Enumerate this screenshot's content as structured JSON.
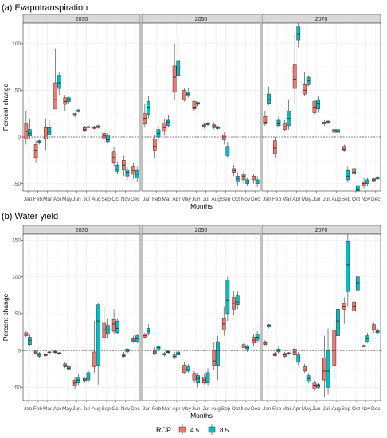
{
  "colors": {
    "rcp45": "#F8766D",
    "rcp85": "#00BFC4",
    "strip_bg": "#d9d9d9",
    "grid": "#ebebeb",
    "border": "#333333"
  },
  "legend": {
    "title": "RCP",
    "items": [
      {
        "label": "4.5",
        "color": "#F8766D"
      },
      {
        "label": "8.5",
        "color": "#00BFC4"
      }
    ]
  },
  "chart_data": [
    {
      "type": "box",
      "title": "(a) Evapotranspiration",
      "xlabel": "Months",
      "ylabel": "Percent change",
      "ylim": [
        -58,
        122
      ],
      "yticks": [
        -50,
        0,
        50,
        100
      ],
      "reference_line": 0,
      "categories": [
        "Jan",
        "Feb",
        "Mar",
        "Apr",
        "May",
        "Jun",
        "Jul",
        "Aug",
        "Sep",
        "Oct",
        "Nov",
        "Dec"
      ],
      "facets": [
        {
          "label": "2030",
          "rcp45": [
            [
              -8,
              -2,
              6,
              14,
              28
            ],
            [
              -28,
              -22,
              -14,
              -8,
              -4
            ],
            [
              -14,
              -2,
              2,
              10,
              20
            ],
            [
              36,
              30,
              40,
              58,
              95
            ],
            [
              28,
              35,
              38,
              42,
              45
            ],
            [
              21,
              23,
              24,
              25,
              26
            ],
            [
              5,
              7,
              8,
              10,
              12
            ],
            [
              8,
              9,
              10,
              11,
              12
            ],
            [
              -6,
              -2,
              1,
              4,
              8
            ],
            [
              -32,
              -28,
              -22,
              -16,
              -10
            ],
            [
              -42,
              -35,
              -30,
              -25,
              -20
            ],
            [
              -45,
              -40,
              -36,
              -32,
              -28
            ]
          ],
          "rcp85": [
            [
              -2,
              1,
              4,
              8,
              20
            ],
            [
              -8,
              -6,
              -5,
              -4,
              -3
            ],
            [
              -2,
              2,
              6,
              10,
              18
            ],
            [
              45,
              52,
              58,
              66,
              70
            ],
            [
              36,
              38,
              40,
              42,
              43
            ],
            [
              26,
              27,
              28,
              29,
              30
            ],
            [
              9,
              10,
              11,
              11,
              12
            ],
            [
              9,
              10,
              11,
              12,
              13
            ],
            [
              -6,
              -5,
              -3,
              2,
              4
            ],
            [
              -40,
              -37,
              -35,
              -30,
              -26
            ],
            [
              -46,
              -42,
              -38,
              -35,
              -32
            ],
            [
              -48,
              -44,
              -40,
              -36,
              -32
            ]
          ]
        },
        {
          "label": "2050",
          "rcp45": [
            [
              10,
              14,
              20,
              25,
              35
            ],
            [
              -22,
              -14,
              -10,
              -2,
              2
            ],
            [
              2,
              6,
              10,
              15,
              20
            ],
            [
              40,
              48,
              64,
              76,
              100
            ],
            [
              38,
              40,
              44,
              50,
              52
            ],
            [
              28,
              30,
              32,
              38,
              40
            ],
            [
              9,
              11,
              12,
              13,
              15
            ],
            [
              8,
              10,
              12,
              13,
              16
            ],
            [
              -8,
              -3,
              0,
              2,
              5
            ],
            [
              -42,
              -38,
              -36,
              -34,
              -30
            ],
            [
              -50,
              -46,
              -42,
              -40,
              -36
            ],
            [
              -50,
              -46,
              -44,
              -42,
              -40
            ]
          ],
          "rcp85": [
            [
              20,
              24,
              32,
              38,
              44
            ],
            [
              -5,
              0,
              4,
              8,
              12
            ],
            [
              10,
              12,
              16,
              18,
              24
            ],
            [
              60,
              66,
              74,
              82,
              110
            ],
            [
              42,
              44,
              46,
              48,
              52
            ],
            [
              33,
              35,
              36,
              37,
              38
            ],
            [
              12,
              13,
              14,
              15,
              16
            ],
            [
              8,
              9,
              10,
              11,
              12
            ],
            [
              -22,
              -20,
              -15,
              -10,
              -5
            ],
            [
              -52,
              -48,
              -45,
              -42,
              -38
            ],
            [
              -52,
              -50,
              -48,
              -46,
              -44
            ],
            [
              -54,
              -50,
              -48,
              -46,
              -42
            ]
          ]
        },
        {
          "label": "2070",
          "rcp45": [
            [
              12,
              14,
              16,
              22,
              28
            ],
            [
              -22,
              -18,
              -12,
              -4,
              0
            ],
            [
              6,
              8,
              11,
              14,
              18
            ],
            [
              36,
              52,
              62,
              78,
              110
            ],
            [
              44,
              46,
              50,
              56,
              70
            ],
            [
              24,
              26,
              32,
              38,
              40
            ],
            [
              12,
              14,
              15,
              16,
              18
            ],
            [
              4,
              5,
              7,
              8,
              10
            ],
            [
              -16,
              -14,
              -13,
              -10,
              -8
            ],
            [
              -42,
              -40,
              -38,
              -34,
              -28
            ],
            [
              -55,
              -52,
              -50,
              -48,
              -44
            ],
            [
              -48,
              -47,
              -46,
              -45,
              -44
            ]
          ],
          "rcp85": [
            [
              34,
              36,
              40,
              46,
              54
            ],
            [
              10,
              12,
              14,
              18,
              22
            ],
            [
              8,
              12,
              20,
              28,
              40
            ],
            [
              96,
              104,
              110,
              118,
              122
            ],
            [
              54,
              56,
              60,
              64,
              66
            ],
            [
              26,
              30,
              36,
              40,
              44
            ],
            [
              14,
              15,
              16,
              17,
              18
            ],
            [
              4,
              5,
              6,
              8,
              10
            ],
            [
              -48,
              -46,
              -42,
              -36,
              -32
            ],
            [
              -60,
              -58,
              -56,
              -52,
              -50
            ],
            [
              -52,
              -50,
              -48,
              -46,
              -44
            ],
            [
              -46,
              -45,
              -44,
              -43,
              -42
            ]
          ]
        }
      ]
    },
    {
      "type": "box",
      "title": "(b) Water yield",
      "xlabel": "Months",
      "ylabel": "Percent change",
      "ylim": [
        -68,
        158
      ],
      "yticks": [
        -50,
        0,
        50,
        100,
        150
      ],
      "reference_line": 0,
      "categories": [
        "Jan",
        "Feb",
        "Mar",
        "Apr",
        "May",
        "Jun",
        "Jul",
        "Aug",
        "Sep",
        "Oct",
        "Nov",
        "Dec"
      ],
      "facets": [
        {
          "label": "2030",
          "rcp45": [
            [
              18,
              20,
              22,
              24,
              26
            ],
            [
              -6,
              -5,
              -3,
              -1,
              0
            ],
            [
              -8,
              -7,
              -6,
              -5,
              -4
            ],
            [
              -4,
              -3,
              -2,
              -1,
              0
            ],
            [
              -24,
              -22,
              -20,
              -18,
              -16
            ],
            [
              -52,
              -48,
              -44,
              -40,
              -36
            ],
            [
              -44,
              -42,
              -40,
              -38,
              -36
            ],
            [
              -30,
              -22,
              -10,
              -2,
              40
            ],
            [
              10,
              18,
              28,
              38,
              60
            ],
            [
              22,
              26,
              36,
              42,
              56
            ],
            [
              -10,
              -8,
              -7,
              -6,
              -2
            ],
            [
              10,
              12,
              14,
              16,
              20
            ]
          ],
          "rcp85": [
            [
              6,
              8,
              14,
              18,
              22
            ],
            [
              -10,
              -8,
              -6,
              -4,
              -2
            ],
            [
              -4,
              -3,
              -2,
              -2,
              -1
            ],
            [
              -6,
              -5,
              -4,
              -3,
              -2
            ],
            [
              -26,
              -25,
              -24,
              -22,
              -20
            ],
            [
              -48,
              -44,
              -40,
              -36,
              -32
            ],
            [
              -44,
              -40,
              -36,
              -30,
              -26
            ],
            [
              -46,
              -20,
              40,
              62,
              64
            ],
            [
              16,
              22,
              28,
              34,
              44
            ],
            [
              22,
              24,
              30,
              40,
              44
            ],
            [
              -4,
              -2,
              0,
              2,
              4
            ],
            [
              10,
              12,
              16,
              20,
              22
            ]
          ]
        },
        {
          "label": "2050",
          "rcp45": [
            [
              16,
              18,
              20,
              22,
              24
            ],
            [
              -6,
              -4,
              -2,
              0,
              4
            ],
            [
              -8,
              -6,
              -5,
              -4,
              -2
            ],
            [
              -12,
              -10,
              -8,
              -6,
              -2
            ],
            [
              -32,
              -30,
              -26,
              -20,
              -16
            ],
            [
              -44,
              -40,
              -36,
              -32,
              -28
            ],
            [
              -46,
              -44,
              -40,
              -36,
              -32
            ],
            [
              -26,
              -20,
              -14,
              0,
              12
            ],
            [
              20,
              28,
              36,
              44,
              60
            ],
            [
              48,
              56,
              64,
              72,
              80
            ],
            [
              2,
              4,
              6,
              8,
              10
            ],
            [
              6,
              10,
              14,
              18,
              22
            ]
          ],
          "rcp85": [
            [
              20,
              22,
              26,
              30,
              36
            ],
            [
              0,
              2,
              4,
              6,
              8
            ],
            [
              -4,
              -3,
              -2,
              -1,
              0
            ],
            [
              -8,
              -6,
              -4,
              -2,
              0
            ],
            [
              -30,
              -28,
              -26,
              -22,
              -18
            ],
            [
              -50,
              -44,
              -38,
              -34,
              -30
            ],
            [
              -48,
              -44,
              -36,
              -30,
              -24
            ],
            [
              -40,
              -20,
              0,
              12,
              20
            ],
            [
              40,
              50,
              68,
              96,
              100
            ],
            [
              56,
              62,
              66,
              74,
              80
            ],
            [
              -2,
              2,
              4,
              6,
              8
            ],
            [
              10,
              14,
              18,
              22,
              26
            ]
          ]
        },
        {
          "label": "2070",
          "rcp45": [
            [
              6,
              8,
              10,
              12,
              14
            ],
            [
              -8,
              -7,
              -6,
              -4,
              -2
            ],
            [
              -10,
              -8,
              -6,
              -4,
              -2
            ],
            [
              -10,
              -6,
              -2,
              2,
              6
            ],
            [
              -30,
              -28,
              -26,
              -22,
              -18
            ],
            [
              -55,
              -52,
              -48,
              -44,
              -40
            ],
            [
              -64,
              -40,
              -28,
              -10,
              20
            ],
            [
              -40,
              -20,
              0,
              28,
              40
            ],
            [
              36,
              56,
              60,
              64,
              72
            ],
            [
              52,
              54,
              60,
              66,
              72
            ],
            [
              4,
              5,
              6,
              7,
              8
            ],
            [
              24,
              28,
              32,
              35,
              38
            ]
          ],
          "rcp85": [
            [
              30,
              32,
              34,
              35,
              36
            ],
            [
              -4,
              -2,
              0,
              2,
              6
            ],
            [
              -6,
              -5,
              -4,
              -3,
              -2
            ],
            [
              -20,
              -16,
              -10,
              -6,
              -2
            ],
            [
              -44,
              -42,
              -38,
              -34,
              -30
            ],
            [
              -52,
              -50,
              -48,
              -46,
              -44
            ],
            [
              -60,
              -50,
              -28,
              0,
              30
            ],
            [
              -10,
              20,
              40,
              56,
              60
            ],
            [
              60,
              80,
              116,
              148,
              158
            ],
            [
              76,
              82,
              92,
              100,
              106
            ],
            [
              10,
              12,
              16,
              20,
              24
            ],
            [
              22,
              24,
              26,
              28,
              30
            ]
          ]
        }
      ]
    }
  ]
}
